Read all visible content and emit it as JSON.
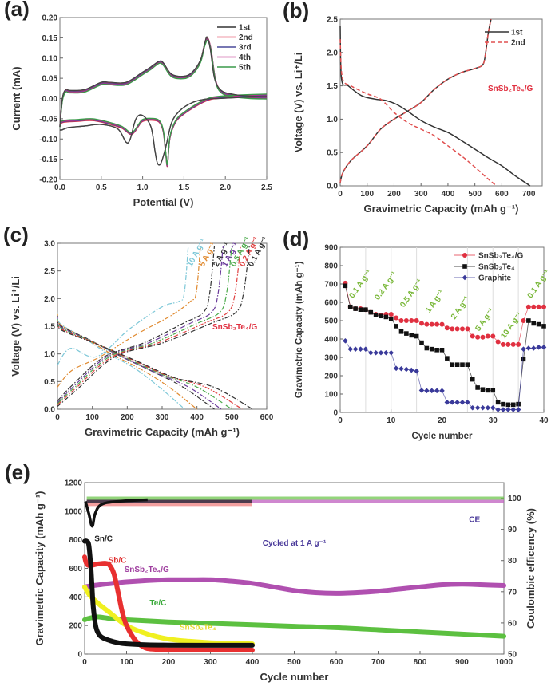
{
  "chart_data": [
    {
      "id": "a",
      "panel_label": "(a)",
      "type": "line",
      "xlabel": "Potential (V)",
      "ylabel": "Current (mA)",
      "xlim": [
        0.0,
        2.5
      ],
      "ylim": [
        -0.2,
        0.2
      ],
      "xticks": [
        "0.0",
        "0.5",
        "1.0",
        "1.5",
        "2.0",
        "2.5"
      ],
      "yticks": [
        "-0.20",
        "-0.15",
        "-0.10",
        "-0.05",
        "0.00",
        "0.05",
        "0.10",
        "0.15",
        "0.20"
      ],
      "legend_position": "top-right",
      "series": [
        {
          "name": "1st",
          "color": "#333333"
        },
        {
          "name": "2nd",
          "color": "#e0304a"
        },
        {
          "name": "3rd",
          "color": "#4a4a9a"
        },
        {
          "name": "4th",
          "color": "#c0308a"
        },
        {
          "name": "5th",
          "color": "#3a9a4a"
        }
      ],
      "first_cycle": {
        "anodic": {
          "x": [
            0.0,
            0.03,
            0.07,
            0.12,
            0.3,
            0.5,
            0.6,
            0.8,
            1.0,
            1.1,
            1.2,
            1.25,
            1.35,
            1.5,
            1.6,
            1.7,
            1.75,
            1.78,
            1.82,
            1.87,
            1.95,
            2.1,
            2.3,
            2.5
          ],
          "y": [
            -0.07,
            0.0,
            0.022,
            0.02,
            0.022,
            0.04,
            0.04,
            0.04,
            0.065,
            0.078,
            0.092,
            0.088,
            0.06,
            0.055,
            0.065,
            0.095,
            0.135,
            0.152,
            0.12,
            0.05,
            0.02,
            0.01,
            0.006,
            0.005
          ]
        },
        "cathodic": {
          "x": [
            2.5,
            2.2,
            1.9,
            1.75,
            1.6,
            1.45,
            1.35,
            1.28,
            1.22,
            1.18,
            1.15,
            1.1,
            1.0,
            0.92,
            0.85,
            0.8,
            0.7,
            0.5,
            0.3,
            0.1,
            0.02,
            0.0
          ],
          "y": [
            0.005,
            0.003,
            0.0,
            -0.002,
            -0.01,
            -0.03,
            -0.06,
            -0.12,
            -0.16,
            -0.16,
            -0.13,
            -0.07,
            -0.042,
            -0.05,
            -0.1,
            -0.108,
            -0.075,
            -0.064,
            -0.068,
            -0.072,
            -0.078,
            -0.077
          ]
        }
      },
      "later_cycles": {
        "anodic": {
          "x": [
            0.0,
            0.03,
            0.07,
            0.12,
            0.3,
            0.5,
            0.6,
            0.8,
            1.0,
            1.1,
            1.2,
            1.25,
            1.35,
            1.5,
            1.6,
            1.7,
            1.75,
            1.79,
            1.83,
            1.88,
            1.95,
            2.1,
            2.3,
            2.5
          ],
          "y": [
            -0.065,
            0.0,
            0.022,
            0.02,
            0.022,
            0.04,
            0.04,
            0.04,
            0.065,
            0.078,
            0.093,
            0.088,
            0.06,
            0.055,
            0.065,
            0.095,
            0.135,
            0.15,
            0.12,
            0.05,
            0.02,
            0.01,
            0.006,
            0.005
          ]
        },
        "cathodic": {
          "x": [
            2.5,
            2.2,
            1.95,
            1.8,
            1.65,
            1.5,
            1.4,
            1.33,
            1.3,
            1.28,
            1.25,
            1.2,
            1.1,
            1.0,
            0.95,
            0.9,
            0.85,
            0.75,
            0.6,
            0.4,
            0.2,
            0.05,
            0.0
          ],
          "y": [
            0.005,
            0.003,
            0.0,
            -0.005,
            -0.02,
            -0.04,
            -0.06,
            -0.1,
            -0.168,
            -0.14,
            -0.085,
            -0.06,
            -0.055,
            -0.058,
            -0.07,
            -0.085,
            -0.09,
            -0.075,
            -0.065,
            -0.056,
            -0.058,
            -0.06,
            -0.065
          ]
        }
      }
    },
    {
      "id": "b",
      "panel_label": "(b)",
      "type": "line",
      "xlabel": "Gravimetric Capacity (mAh g⁻¹)",
      "ylabel": "Voltage (V) vs. Li⁺/Li",
      "xlim": [
        0,
        750
      ],
      "ylim": [
        0.0,
        2.5
      ],
      "xticks": [
        "0",
        "100",
        "200",
        "300",
        "400",
        "500",
        "600",
        "700"
      ],
      "yticks": [
        "0.0",
        "0.5",
        "1.0",
        "1.5",
        "2.0",
        "2.5"
      ],
      "annotation": "SnSb₂Te₄/G",
      "legend_position": "top-right",
      "series": [
        {
          "name": "1st",
          "color": "#333333",
          "dash": "solid",
          "discharge": {
            "x": [
              0,
              5,
              30,
              80,
              130,
              170,
              210,
              250,
              300,
              350,
              400,
              450,
              500,
              550,
              600,
              650,
              705
            ],
            "y": [
              2.4,
              1.6,
              1.5,
              1.35,
              1.3,
              1.28,
              1.22,
              1.12,
              0.98,
              0.88,
              0.8,
              0.68,
              0.55,
              0.42,
              0.3,
              0.15,
              0.0
            ]
          },
          "charge": {
            "x": [
              0,
              10,
              40,
              100,
              150,
              200,
              250,
              300,
              350,
              400,
              450,
              500,
              530,
              540,
              550,
              560
            ],
            "y": [
              0.05,
              0.2,
              0.38,
              0.6,
              0.85,
              1.0,
              1.12,
              1.25,
              1.45,
              1.6,
              1.7,
              1.76,
              1.82,
              2.0,
              2.3,
              2.5
            ]
          }
        },
        {
          "name": "2nd",
          "color": "#e05050",
          "dash": "dashed",
          "discharge": {
            "x": [
              0,
              8,
              40,
              100,
              150,
              200,
              250,
              300,
              350,
              400,
              450,
              500,
              550,
              580
            ],
            "y": [
              2.2,
              1.62,
              1.5,
              1.38,
              1.3,
              1.1,
              0.95,
              0.85,
              0.75,
              0.6,
              0.45,
              0.28,
              0.1,
              0.0
            ]
          },
          "charge": {
            "x": [
              0,
              10,
              40,
              100,
              150,
              200,
              250,
              300,
              350,
              400,
              450,
              500,
              530,
              540,
              550,
              560
            ],
            "y": [
              0.05,
              0.2,
              0.38,
              0.6,
              0.85,
              1.0,
              1.12,
              1.25,
              1.45,
              1.6,
              1.7,
              1.76,
              1.82,
              2.0,
              2.3,
              2.5
            ]
          }
        }
      ]
    },
    {
      "id": "c",
      "panel_label": "(c)",
      "type": "line",
      "xlabel": "Gravimetric Capacity (mAh g⁻¹)",
      "ylabel": "Voltage (V) vs. Li⁺/Li",
      "xlim": [
        0,
        600
      ],
      "ylim": [
        0.0,
        3.0
      ],
      "xticks": [
        "0",
        "100",
        "200",
        "300",
        "400",
        "500",
        "600"
      ],
      "yticks": [
        "0.0",
        "0.5",
        "1.0",
        "1.5",
        "2.0",
        "2.5",
        "3.0"
      ],
      "annotation": "SnSb₂Te₄/G",
      "series": [
        {
          "name": "10 A g⁻¹",
          "color": "#7ec8d8",
          "discharge_end": 365,
          "charge_end": 375,
          "charge_start_v": 0.8
        },
        {
          "name": "5 A g⁻¹",
          "color": "#e08a30",
          "discharge_end": 400,
          "charge_end": 410,
          "charge_start_v": 0.4
        },
        {
          "name": "2 A g⁻¹",
          "color": "#333333",
          "discharge_end": 450,
          "charge_end": 450,
          "charge_start_v": 0.15
        },
        {
          "name": "1 A g⁻¹",
          "color": "#6a3a9a",
          "discharge_end": 470,
          "charge_end": 475,
          "charge_start_v": 0.12
        },
        {
          "name": "0.5 A g⁻¹",
          "color": "#4aaa4a",
          "discharge_end": 500,
          "charge_end": 500,
          "charge_start_v": 0.1
        },
        {
          "name": "0.2 A g⁻¹",
          "color": "#e04040",
          "discharge_end": 530,
          "charge_end": 525,
          "charge_start_v": 0.08
        },
        {
          "name": "0.1 A g⁻¹",
          "color": "#333333",
          "discharge_end": 560,
          "charge_end": 550,
          "charge_start_v": 0.05
        }
      ]
    },
    {
      "id": "d",
      "panel_label": "(d)",
      "type": "line",
      "xlabel": "Cycle number",
      "ylabel": "Gravimetric Capacity (mAh g⁻¹)",
      "xlim": [
        0,
        40
      ],
      "ylim": [
        0,
        900
      ],
      "xticks": [
        "0",
        "10",
        "20",
        "30",
        "40"
      ],
      "yticks": [
        "0",
        "100",
        "200",
        "300",
        "400",
        "500",
        "600",
        "700",
        "800",
        "900"
      ],
      "legend_position": "top-right",
      "rate_labels": [
        {
          "text": "0.1 A g⁻¹",
          "x": 2.5,
          "y": 620
        },
        {
          "text": "0.2 A g⁻¹",
          "x": 7.5,
          "y": 610
        },
        {
          "text": "0.5 A g⁻¹",
          "x": 12.5,
          "y": 570
        },
        {
          "text": "1 A g⁻¹",
          "x": 17.5,
          "y": 540
        },
        {
          "text": "2 A g⁻¹",
          "x": 22.5,
          "y": 505
        },
        {
          "text": "5 A g⁻¹",
          "x": 27.3,
          "y": 440
        },
        {
          "text": "10 A g⁻¹",
          "x": 32.3,
          "y": 400
        },
        {
          "text": "0.1 A g⁻¹",
          "x": 37.5,
          "y": 620
        }
      ],
      "x": [
        1,
        2,
        3,
        4,
        5,
        6,
        7,
        8,
        9,
        10,
        11,
        12,
        13,
        14,
        15,
        16,
        17,
        18,
        19,
        20,
        21,
        22,
        23,
        24,
        25,
        26,
        27,
        28,
        29,
        30,
        31,
        32,
        33,
        34,
        35,
        36,
        37,
        38,
        39,
        40
      ],
      "series": [
        {
          "name": "SnSb₂Te₄/G",
          "color": "#e03040",
          "marker": "circle",
          "values": [
            705,
            575,
            565,
            565,
            560,
            545,
            535,
            530,
            535,
            535,
            515,
            500,
            500,
            500,
            500,
            485,
            480,
            480,
            480,
            480,
            460,
            455,
            455,
            455,
            455,
            415,
            410,
            410,
            415,
            415,
            385,
            370,
            370,
            370,
            370,
            500,
            575,
            575,
            575,
            575
          ]
        },
        {
          "name": "SnSb₂Te₄",
          "color": "#111111",
          "marker": "square",
          "values": [
            690,
            575,
            565,
            560,
            560,
            545,
            530,
            525,
            520,
            510,
            470,
            440,
            430,
            420,
            415,
            380,
            350,
            345,
            340,
            340,
            295,
            260,
            260,
            260,
            260,
            180,
            135,
            125,
            120,
            120,
            55,
            45,
            42,
            42,
            45,
            290,
            500,
            485,
            480,
            470
          ]
        },
        {
          "name": "Graphite",
          "color": "#3a3a9a",
          "marker": "diamond",
          "values": [
            390,
            345,
            345,
            345,
            345,
            325,
            325,
            325,
            325,
            325,
            240,
            238,
            235,
            230,
            225,
            120,
            118,
            118,
            118,
            118,
            55,
            55,
            55,
            55,
            55,
            25,
            25,
            25,
            25,
            25,
            15,
            15,
            15,
            15,
            15,
            345,
            350,
            350,
            355,
            355
          ]
        }
      ]
    },
    {
      "id": "e",
      "panel_label": "(e)",
      "type": "line",
      "xlabel": "Cycle number",
      "ylabel": "Gravimetric Capacity (mAh g⁻¹)",
      "y2label": "Coulombic efficency (%)",
      "xlim": [
        0,
        1000
      ],
      "ylim": [
        0,
        1200
      ],
      "y2lim": [
        50,
        105
      ],
      "xticks": [
        "0",
        "100",
        "200",
        "300",
        "400",
        "500",
        "600",
        "700",
        "800",
        "900",
        "1000"
      ],
      "yticks": [
        "0",
        "200",
        "400",
        "600",
        "800",
        "1000",
        "1200"
      ],
      "y2ticks": [
        "50",
        "60",
        "70",
        "80",
        "90",
        "100"
      ],
      "annotations": [
        {
          "text": "Cycled at 1 A g⁻¹",
          "color": "#4a3a9a"
        },
        {
          "text": "CE",
          "color": "#4a3a9a"
        },
        {
          "text": "Sn/C",
          "color": "#222222"
        },
        {
          "text": "Sb/C",
          "color": "#e03030"
        },
        {
          "text": "SnSb₂Te₄/G",
          "color": "#a040a0"
        },
        {
          "text": "Te/C",
          "color": "#3aaa3a"
        },
        {
          "text": "SnSb₂Te₄",
          "color": "#e8d830"
        }
      ],
      "series": [
        {
          "name": "SnSb₂Te₄/G",
          "color": "#b050b0",
          "x": [
            0,
            20,
            50,
            100,
            150,
            200,
            250,
            300,
            350,
            400,
            450,
            500,
            550,
            600,
            650,
            700,
            750,
            800,
            850,
            900,
            950,
            1000
          ],
          "capacity": [
            470,
            480,
            490,
            505,
            515,
            520,
            520,
            520,
            510,
            495,
            470,
            445,
            430,
            425,
            430,
            440,
            455,
            470,
            485,
            490,
            485,
            480
          ],
          "ce_percent": 99
        },
        {
          "name": "Te/C",
          "color": "#5cc040",
          "x": [
            0,
            10,
            30,
            60,
            100,
            200,
            300,
            400,
            500,
            600,
            700,
            800,
            900,
            1000
          ],
          "capacity": [
            240,
            250,
            260,
            250,
            240,
            225,
            215,
            205,
            195,
            185,
            170,
            155,
            140,
            125
          ],
          "ce_percent": 100
        },
        {
          "name": "SnSb₂Te₄",
          "color": "#f0f020",
          "x": [
            0,
            10,
            30,
            60,
            100,
            150,
            200,
            250,
            300,
            350,
            400
          ],
          "capacity": [
            470,
            420,
            360,
            290,
            200,
            140,
            105,
            90,
            80,
            75,
            72
          ]
        },
        {
          "name": "Sb/C",
          "color": "#e83030",
          "x": [
            0,
            5,
            15,
            30,
            50,
            60,
            70,
            80,
            90,
            100,
            120,
            140,
            160,
            200,
            300,
            400
          ],
          "capacity": [
            680,
            630,
            620,
            630,
            635,
            620,
            560,
            430,
            290,
            200,
            100,
            50,
            35,
            30,
            28,
            28
          ],
          "ce_percent": 98
        },
        {
          "name": "Sn/C",
          "color": "#111111",
          "x": [
            0,
            5,
            10,
            15,
            20,
            25,
            30,
            40,
            60,
            80,
            100,
            150,
            200,
            300,
            400
          ],
          "capacity": [
            790,
            790,
            760,
            600,
            350,
            220,
            160,
            120,
            95,
            80,
            72,
            65,
            63,
            62,
            62
          ],
          "ce_percent": 99
        }
      ]
    }
  ]
}
